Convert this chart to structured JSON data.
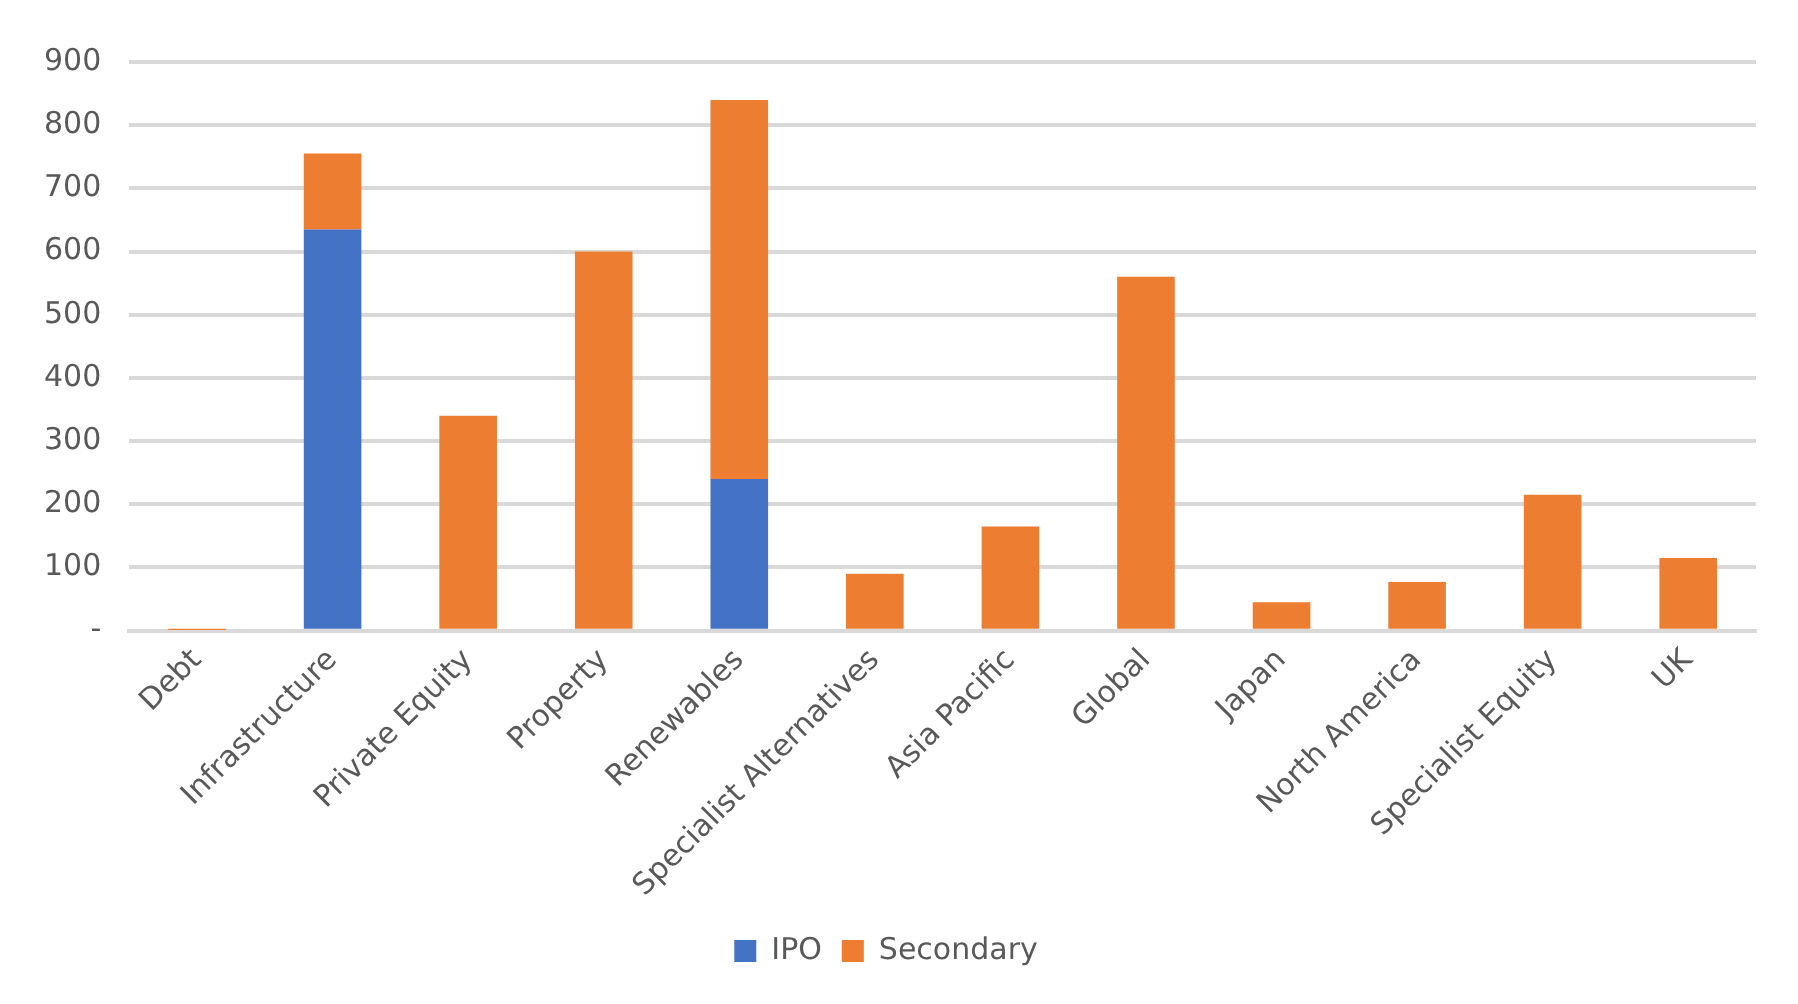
{
  "chart_data": {
    "type": "bar",
    "stacked": true,
    "categories": [
      "Debt",
      "Infrastructure",
      "Private Equity",
      "Property",
      "Renewables",
      "Specialist Alternatives",
      "Asia Pacific",
      "Global",
      "Japan",
      "North America",
      "Specialist Equity",
      "UK"
    ],
    "series": [
      {
        "name": "IPO",
        "color": "#4472c4",
        "values": [
          0,
          635,
          0,
          0,
          240,
          0,
          0,
          0,
          0,
          0,
          0,
          0
        ]
      },
      {
        "name": "Secondary",
        "color": "#ed7d31",
        "values": [
          1,
          120,
          340,
          600,
          600,
          90,
          165,
          560,
          45,
          77,
          215,
          115
        ]
      }
    ],
    "ylim": [
      0,
      900
    ],
    "yticks": [
      {
        "value": 0,
        "label": "-"
      },
      100,
      200,
      300,
      400,
      500,
      600,
      700,
      800,
      900
    ],
    "grid": "y",
    "legend": "bottom"
  }
}
